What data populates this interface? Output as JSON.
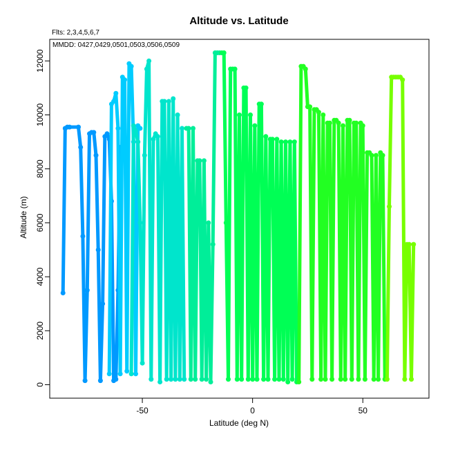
{
  "chart_data": {
    "type": "line",
    "title": "Altitude vs. Latitude",
    "xlabel": "Latitude (deg N)",
    "ylabel": "Altitude (m)",
    "annotations": {
      "flights": "Flts: 2,3,4,5,6,7",
      "dates": "MMDD: 0427,0429,0501,0503,0506,0509"
    },
    "xlim": [
      -92,
      80
    ],
    "ylim": [
      -500,
      12800
    ],
    "x_ticks": [
      -50,
      0,
      50
    ],
    "x_tick_labels": [
      "-50",
      "0",
      "50"
    ],
    "y_ticks": [
      0,
      2000,
      4000,
      6000,
      8000,
      10000,
      12000
    ],
    "y_tick_labels": [
      "0",
      "2000",
      "4000",
      "6000",
      "8000",
      "10000",
      "12000"
    ],
    "grid": false,
    "legend": "none",
    "series": [
      {
        "color": "#0099ff",
        "x": [
          -86,
          -85,
          -84,
          -83,
          -79,
          -78,
          -77,
          -76,
          -75,
          -74,
          -73,
          -72,
          -71,
          -70,
          -69,
          -68,
          -67,
          -66,
          -65,
          -64,
          -63,
          -62,
          -61,
          -60
        ],
        "y": [
          3400,
          9500,
          9550,
          9550,
          9550,
          8800,
          5500,
          150,
          3500,
          9300,
          9350,
          9350,
          8500,
          5000,
          150,
          3000,
          9200,
          9300,
          9100,
          6800,
          150,
          200,
          3500,
          8800
        ]
      },
      {
        "color": "#00ccff",
        "x": [
          -65,
          -64,
          -63,
          -62,
          -61,
          -60,
          -59,
          -58,
          -57,
          -56,
          -55,
          -54,
          -53,
          -52,
          -51
        ],
        "y": [
          400,
          10400,
          10500,
          10800,
          9500,
          400,
          11400,
          11300,
          500,
          11900,
          11800,
          9000,
          400,
          9600,
          9500
        ]
      },
      {
        "color": "#00e5cc",
        "x": [
          -55,
          -54,
          -53,
          -52,
          -51,
          -50,
          -49,
          -48,
          -47,
          -46,
          -45,
          -44,
          -43,
          -42,
          -41,
          -40,
          -39,
          -38,
          -37,
          -36,
          -35,
          -34,
          -33,
          -32,
          -31
        ],
        "y": [
          400,
          9600,
          9400,
          9000,
          6000,
          800,
          8500,
          11700,
          12000,
          200,
          9100,
          9300,
          9200,
          100,
          10500,
          10500,
          200,
          10500,
          200,
          10600,
          200,
          10000,
          200,
          9500,
          200
        ]
      },
      {
        "color": "#00ee99",
        "x": [
          -30,
          -29,
          -28,
          -27,
          -26,
          -25,
          -24,
          -23,
          -22,
          -21,
          -20,
          -19,
          -18,
          -17,
          -16,
          -15
        ],
        "y": [
          9500,
          9500,
          200,
          9500,
          200,
          8300,
          8300,
          200,
          8300,
          200,
          6000,
          100,
          5200,
          12300,
          12300,
          12300
        ]
      },
      {
        "color": "#00ff55",
        "x": [
          -14,
          -13,
          -12,
          -11,
          -10,
          -9,
          -8,
          -7,
          -6,
          -5,
          -4,
          -3,
          -2,
          -1,
          0,
          1,
          2,
          3,
          4,
          5,
          6,
          7,
          8,
          9,
          10,
          11,
          12,
          13,
          14,
          15,
          16,
          17,
          18,
          19,
          20
        ],
        "y": [
          12300,
          12300,
          6000,
          200,
          11700,
          11700,
          11700,
          200,
          10000,
          200,
          11000,
          11000,
          200,
          10000,
          200,
          9600,
          200,
          10400,
          10400,
          200,
          9200,
          200,
          9100,
          9100,
          200,
          9100,
          200,
          9000,
          200,
          9000,
          100,
          9000,
          200,
          9000,
          100
        ]
      },
      {
        "color": "#22ff22",
        "x": [
          21,
          22,
          23,
          24,
          25,
          26,
          27,
          28,
          29,
          30,
          31,
          32,
          33,
          34,
          35,
          36,
          37,
          38,
          39,
          40,
          41,
          42,
          43,
          44,
          45,
          46,
          47,
          48,
          49,
          50,
          51,
          52,
          53,
          54,
          55,
          56,
          57,
          58,
          59,
          60
        ],
        "y": [
          100,
          11800,
          11800,
          11700,
          10300,
          10300,
          200,
          10200,
          10200,
          10100,
          200,
          10000,
          200,
          9700,
          9700,
          200,
          9800,
          9800,
          9700,
          200,
          9600,
          200,
          9800,
          9800,
          200,
          9700,
          9700,
          200,
          9700,
          9600,
          200,
          8600,
          8600,
          8500,
          200,
          8500,
          200,
          8600,
          8500,
          200
        ]
      },
      {
        "color": "#77ff00",
        "x": [
          61,
          62,
          63,
          64,
          65,
          66,
          67,
          68,
          69,
          70,
          71,
          72,
          73
        ],
        "y": [
          200,
          6600,
          11400,
          11400,
          11400,
          11400,
          11400,
          11300,
          200,
          5200,
          5200,
          200,
          5200
        ]
      }
    ]
  }
}
